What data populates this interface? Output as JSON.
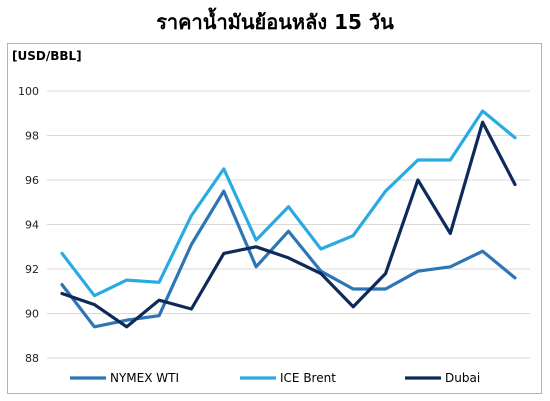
{
  "chart_data": {
    "type": "line",
    "title": "ราคาน้ำมันย้อนหลัง 15 วัน",
    "ylabel": "[USD/BBL]",
    "xlabel": "",
    "ylim": [
      88,
      100
    ],
    "yticks": [
      88,
      90,
      92,
      94,
      96,
      98,
      100
    ],
    "grid": true,
    "legend_position": "bottom",
    "x": [
      1,
      2,
      3,
      4,
      5,
      6,
      7,
      8,
      9,
      10,
      11,
      12,
      13,
      14,
      15
    ],
    "series": [
      {
        "name": "NYMEX WTI",
        "color": "#2e75b6",
        "values": [
          91.3,
          89.4,
          89.7,
          89.9,
          93.1,
          95.5,
          92.1,
          93.7,
          91.9,
          91.1,
          91.1,
          91.9,
          92.1,
          92.8,
          91.6
        ]
      },
      {
        "name": "ICE Brent",
        "color": "#29abe2",
        "values": [
          92.7,
          90.8,
          91.5,
          91.4,
          94.4,
          96.5,
          93.3,
          94.8,
          92.9,
          93.5,
          95.5,
          96.9,
          96.9,
          99.1,
          97.9
        ]
      },
      {
        "name": "Dubai",
        "color": "#0e2a5a",
        "values": [
          90.9,
          90.4,
          89.4,
          90.6,
          90.2,
          92.7,
          93.0,
          92.5,
          91.8,
          90.3,
          91.8,
          96.0,
          93.6,
          98.6,
          95.8
        ]
      }
    ]
  }
}
